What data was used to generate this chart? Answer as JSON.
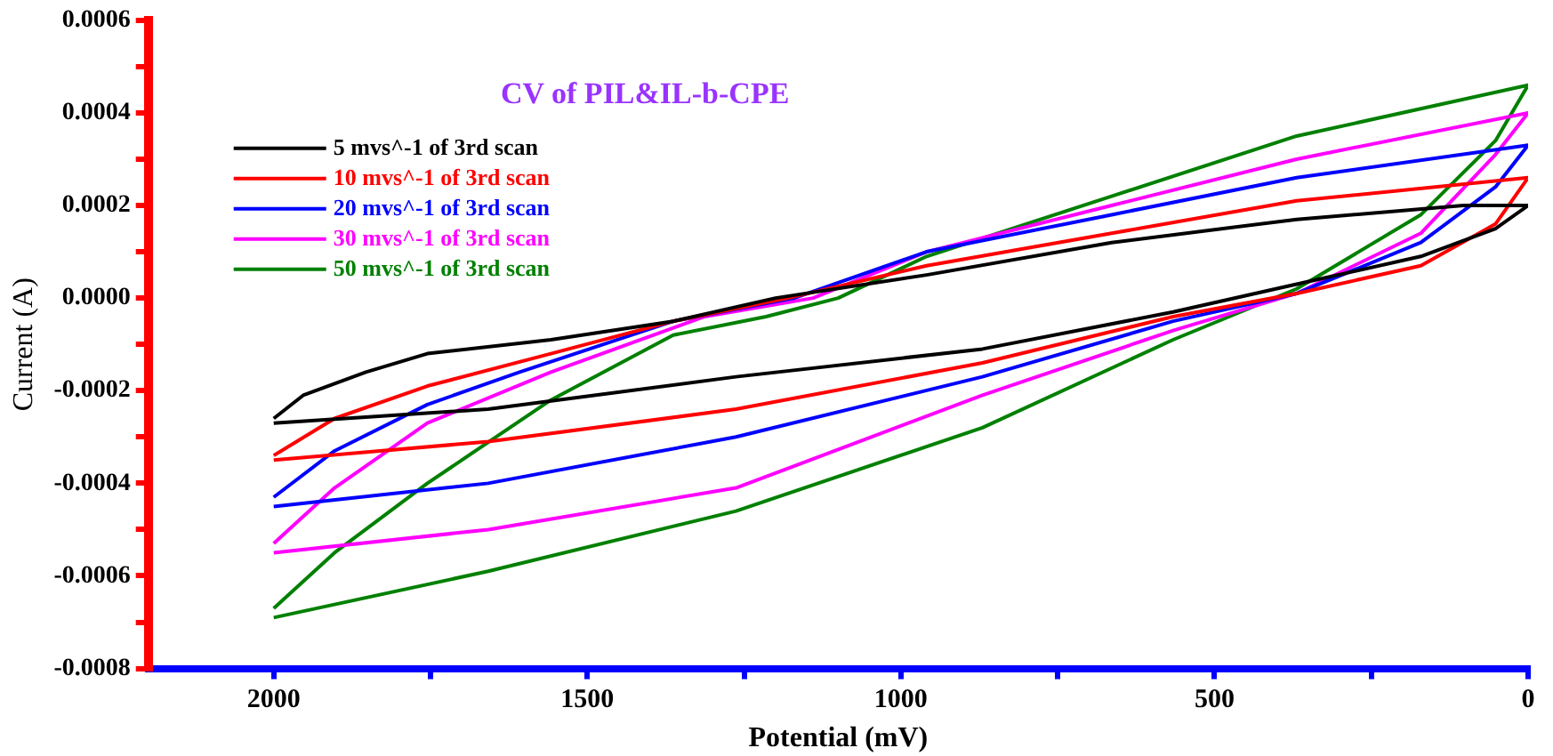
{
  "chart_data": {
    "type": "line",
    "title": "CV of PIL&IL-b-CPE",
    "xlabel": "Potential (mV)",
    "ylabel": "Current (A)",
    "xlim": [
      2200,
      0
    ],
    "xticks": [
      2000,
      {
        "value": 1750,
        "label": null
      },
      1500,
      {
        "value": 1250,
        "label": null
      },
      1000,
      {
        "value": 750,
        "label": null
      },
      500,
      {
        "value": 250,
        "label": null
      },
      0
    ],
    "ylim": [
      -0.0008,
      0.0006
    ],
    "yticks": [
      -0.0008,
      {
        "value": -0.0007,
        "label": null
      },
      -0.0006,
      {
        "value": -0.0005,
        "label": null
      },
      -0.0004,
      {
        "value": -0.0003,
        "label": null
      },
      -0.0002,
      {
        "value": -0.0001,
        "label": null
      },
      {
        "value": 0,
        "label": "0.0000"
      },
      {
        "value": 0.0001,
        "label": null
      },
      0.0002,
      {
        "value": 0.0003,
        "label": null
      },
      0.0004,
      {
        "value": 0.0005,
        "label": null
      },
      0.0006
    ],
    "legend": "top left",
    "marker": "none",
    "line_style": "solid",
    "series": [
      {
        "name": "5 mvs^-1 of 3rd scan",
        "color": "#000000",
        "x": [
          2000,
          1658,
          1263,
          870,
          566,
          369,
          171,
          52,
          0,
          103,
          369,
          664,
          959,
          1200,
          1363,
          1558,
          1755,
          1853,
          1953,
          2000
        ],
        "values": [
          -0.00027,
          -0.00024,
          -0.00017,
          -0.00011,
          -3e-05,
          3e-05,
          9e-05,
          0.00015,
          0.0002,
          0.0002,
          0.00017,
          0.00012,
          5e-05,
          0,
          -5e-05,
          -9e-05,
          -0.00012,
          -0.00016,
          -0.00021,
          -0.00026
        ]
      },
      {
        "name": "10 mvs^-1 of 3rd scan",
        "color": "#ff0000",
        "x": [
          2000,
          1658,
          1263,
          870,
          566,
          369,
          171,
          52,
          0,
          369,
          664,
          959,
          1180,
          1363,
          1558,
          1755,
          1903,
          2000
        ],
        "values": [
          -0.00035,
          -0.00031,
          -0.00024,
          -0.00014,
          -4e-05,
          1e-05,
          7e-05,
          0.00016,
          0.00026,
          0.00021,
          0.00014,
          7e-05,
          0,
          -5e-05,
          -0.00012,
          -0.00019,
          -0.00026,
          -0.00034
        ]
      },
      {
        "name": "20 mvs^-1 of 3rd scan",
        "color": "#0000ff",
        "x": [
          2000,
          1658,
          1263,
          870,
          566,
          369,
          171,
          52,
          0,
          369,
          664,
          959,
          1170,
          1363,
          1608,
          1755,
          1903,
          2000
        ],
        "values": [
          -0.00045,
          -0.0004,
          -0.0003,
          -0.00017,
          -5e-05,
          1e-05,
          0.00012,
          0.00024,
          0.00033,
          0.00026,
          0.00018,
          0.0001,
          0,
          -5e-05,
          -0.00016,
          -0.00023,
          -0.00033,
          -0.00043
        ]
      },
      {
        "name": "30 mvs^-1 of 3rd scan",
        "color": "#ff00ff",
        "x": [
          2000,
          1658,
          1263,
          870,
          566,
          369,
          171,
          52,
          0,
          369,
          664,
          959,
          1140,
          1313,
          1558,
          1755,
          1903,
          2000
        ],
        "values": [
          -0.00055,
          -0.0005,
          -0.00041,
          -0.00021,
          -7e-05,
          1e-05,
          0.00014,
          0.00031,
          0.0004,
          0.0003,
          0.0002,
          0.0001,
          0,
          -4e-05,
          -0.00016,
          -0.00027,
          -0.00041,
          -0.00053
        ]
      },
      {
        "name": "50 mvs^-1 of 3rd scan",
        "color": "#008000",
        "x": [
          2000,
          1658,
          1263,
          870,
          566,
          369,
          171,
          52,
          0,
          369,
          664,
          959,
          1100,
          1215,
          1363,
          1558,
          1755,
          1903,
          2000
        ],
        "values": [
          -0.00069,
          -0.00059,
          -0.00046,
          -0.00028,
          -9e-05,
          2e-05,
          0.00018,
          0.00034,
          0.00046,
          0.00035,
          0.00022,
          9e-05,
          0,
          -4e-05,
          -8e-05,
          -0.00022,
          -0.0004,
          -0.00055,
          -0.00067
        ]
      }
    ]
  }
}
